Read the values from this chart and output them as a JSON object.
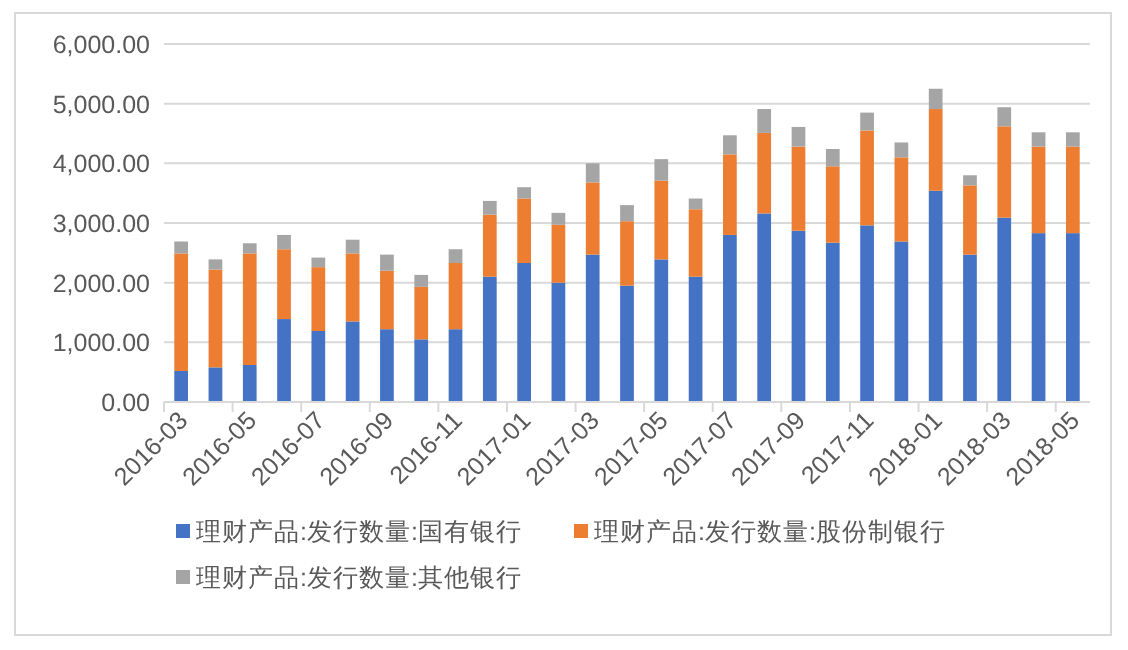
{
  "chart_data": {
    "type": "bar",
    "stacked": true,
    "categories": [
      "2016-03",
      null,
      "2016-05",
      null,
      "2016-07",
      null,
      "2016-09",
      null,
      "2016-11",
      null,
      "2017-01",
      null,
      "2017-03",
      null,
      "2017-05",
      null,
      "2017-07",
      null,
      "2017-09",
      null,
      "2017-11",
      null,
      "2018-01",
      null,
      "2018-03",
      null,
      "2018-05"
    ],
    "series": [
      {
        "name": "理财产品:发行数量:国有银行",
        "color": "#4472c4",
        "values": [
          520,
          580,
          620,
          1390,
          1190,
          1350,
          1220,
          1050,
          1220,
          2100,
          2330,
          2000,
          2470,
          1950,
          2390,
          2100,
          2800,
          3160,
          2870,
          2670,
          2960,
          2690,
          3540,
          2470,
          3090,
          2830,
          2830
        ]
      },
      {
        "name": "理财产品:发行数量:股份制银行",
        "color": "#ed7d31",
        "values": [
          1970,
          1640,
          1870,
          1170,
          1070,
          1140,
          980,
          880,
          1110,
          1040,
          1080,
          970,
          1210,
          1080,
          1320,
          1130,
          1350,
          1350,
          1410,
          1280,
          1590,
          1410,
          1370,
          1160,
          1530,
          1450,
          1450
        ]
      },
      {
        "name": "理财产品:发行数量:其他银行",
        "color": "#a5a5a5",
        "values": [
          200,
          170,
          170,
          240,
          160,
          230,
          270,
          200,
          230,
          230,
          190,
          200,
          320,
          270,
          360,
          180,
          320,
          400,
          330,
          290,
          300,
          250,
          340,
          170,
          320,
          240,
          240
        ]
      }
    ],
    "ylim": [
      0,
      6000
    ],
    "yticks": [
      {
        "value": 0,
        "label": "0.00"
      },
      {
        "value": 1000,
        "label": "1,000.00"
      },
      {
        "value": 2000,
        "label": "2,000.00"
      },
      {
        "value": 3000,
        "label": "3,000.00"
      },
      {
        "value": 4000,
        "label": "4,000.00"
      },
      {
        "value": 5000,
        "label": "5,000.00"
      },
      {
        "value": 6000,
        "label": "6,000.00"
      }
    ],
    "grid": "y",
    "legend": "bottom"
  }
}
